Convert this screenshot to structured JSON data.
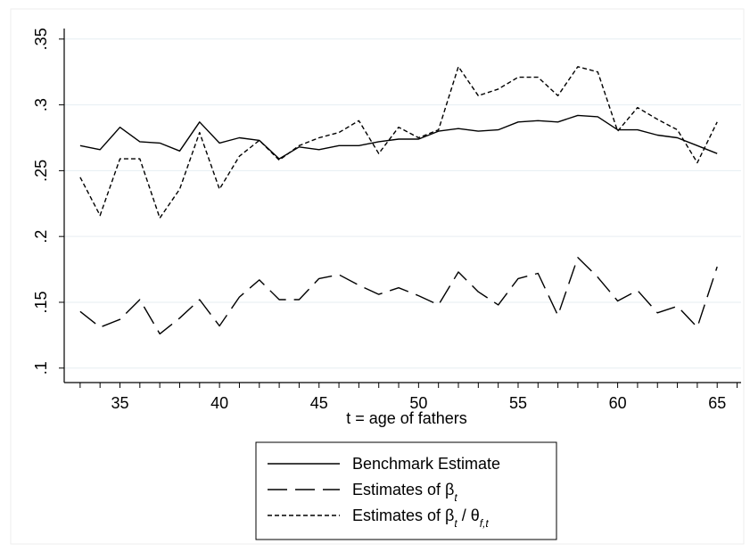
{
  "chart_data": {
    "type": "line",
    "xlabel": "t = age of fathers",
    "ylabel": "",
    "xlim": [
      32.2,
      66.2
    ],
    "ylim": [
      0.089,
      0.358
    ],
    "x_ticks": [
      35,
      40,
      45,
      50,
      55,
      60,
      65
    ],
    "y_ticks": [
      0.1,
      0.15,
      0.2,
      0.25,
      0.3,
      0.35
    ],
    "y_tick_labels": [
      ".1",
      ".15",
      ".2",
      ".25",
      ".3",
      ".35"
    ],
    "grid": true,
    "legend_position": "bottom-center",
    "x": [
      33,
      34,
      35,
      36,
      37,
      38,
      39,
      40,
      41,
      42,
      43,
      44,
      45,
      46,
      47,
      48,
      49,
      50,
      51,
      52,
      53,
      54,
      55,
      56,
      57,
      58,
      59,
      60,
      61,
      62,
      63,
      64,
      65
    ],
    "series": [
      {
        "name": "Benchmark Estimate",
        "style": "solid",
        "values": [
          0.269,
          0.266,
          0.283,
          0.272,
          0.271,
          0.265,
          0.287,
          0.271,
          0.275,
          0.273,
          0.259,
          0.268,
          0.266,
          0.269,
          0.269,
          0.272,
          0.274,
          0.274,
          0.28,
          0.282,
          0.28,
          0.281,
          0.287,
          0.288,
          0.287,
          0.292,
          0.291,
          0.281,
          0.281,
          0.277,
          0.275,
          0.269,
          0.263
        ]
      },
      {
        "name": "Estimates of β",
        "name_subscript": "t",
        "style": "longdash",
        "values": [
          0.143,
          0.131,
          0.137,
          0.152,
          0.126,
          0.138,
          0.152,
          0.132,
          0.154,
          0.167,
          0.152,
          0.152,
          0.168,
          0.171,
          0.163,
          0.156,
          0.161,
          0.155,
          0.148,
          0.173,
          0.158,
          0.148,
          0.168,
          0.172,
          0.14,
          0.184,
          0.169,
          0.151,
          0.159,
          0.142,
          0.147,
          0.131,
          0.177
        ]
      },
      {
        "name": "Estimates of β",
        "name_subscript": "t",
        "name_suffix": " / θ",
        "name_suffix_subscript": "f,t",
        "style": "shortdash",
        "values": [
          0.245,
          0.216,
          0.259,
          0.259,
          0.214,
          0.236,
          0.279,
          0.236,
          0.261,
          0.273,
          0.258,
          0.269,
          0.275,
          0.279,
          0.288,
          0.263,
          0.283,
          0.275,
          0.281,
          0.329,
          0.307,
          0.312,
          0.321,
          0.321,
          0.307,
          0.329,
          0.325,
          0.28,
          0.298,
          0.289,
          0.281,
          0.256,
          0.287
        ]
      }
    ]
  }
}
